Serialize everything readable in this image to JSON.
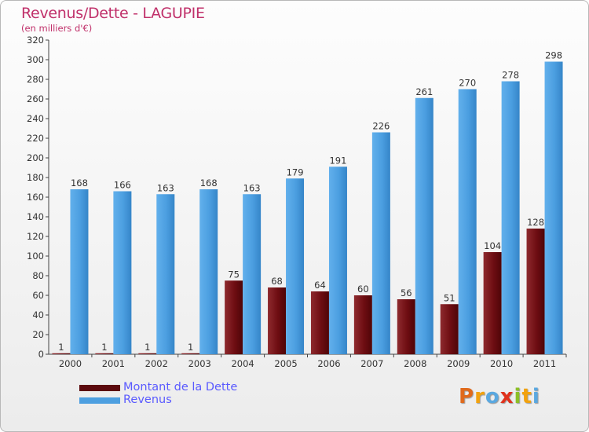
{
  "header": {
    "title": "Revenus/Dette - LAGUPIE",
    "subtitle": "(en milliers d'€)"
  },
  "legend": {
    "items": [
      {
        "label": "Montant de la Dette",
        "color": "#7a0f14"
      },
      {
        "label": "Revenus",
        "color": "#4d9fe0"
      }
    ]
  },
  "logo": {
    "letters": [
      "P",
      "r",
      "o",
      "x",
      "i",
      "t",
      "i"
    ],
    "colors": [
      "#e06a1c",
      "#f2a20e",
      "#5aa8e0",
      "#e0321c",
      "#8cbf26",
      "#f2a20e",
      "#5aa8e0"
    ]
  },
  "chart_data": {
    "type": "bar",
    "categories": [
      "2000",
      "2001",
      "2002",
      "2003",
      "2004",
      "2005",
      "2006",
      "2007",
      "2008",
      "2009",
      "2010",
      "2011"
    ],
    "series": [
      {
        "name": "Montant de la Dette",
        "color": "#7a0f14",
        "values": [
          1,
          1,
          1,
          1,
          75,
          68,
          64,
          60,
          56,
          51,
          104,
          128
        ]
      },
      {
        "name": "Revenus",
        "color": "#4d9fe0",
        "values": [
          168,
          166,
          163,
          168,
          163,
          179,
          191,
          226,
          261,
          270,
          278,
          298
        ]
      }
    ],
    "ylim": [
      0,
      320
    ],
    "yticks": [
      0,
      20,
      40,
      60,
      80,
      100,
      120,
      140,
      160,
      180,
      200,
      220,
      240,
      260,
      280,
      300,
      320
    ],
    "grid": false,
    "legend_position": "bottom-left"
  }
}
